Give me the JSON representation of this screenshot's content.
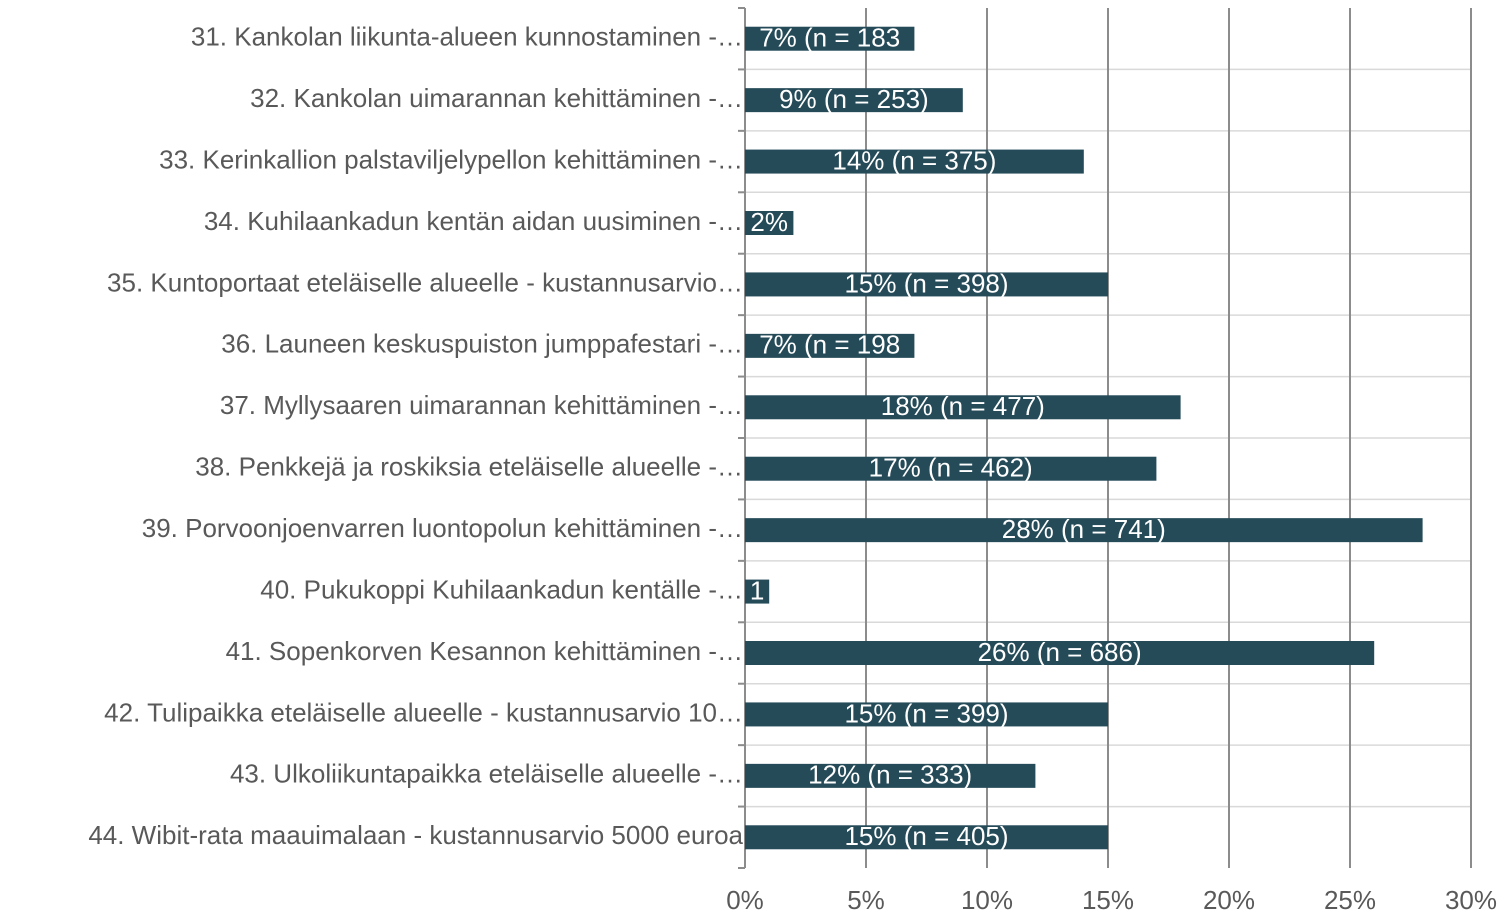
{
  "chart_data": {
    "type": "bar",
    "orientation": "horizontal",
    "categories": [
      "31. Kankolan liikunta-alueen kunnostaminen -…",
      "32. Kankolan uimarannan kehittäminen -…",
      "33. Kerinkallion palstaviljelypellon kehittäminen -…",
      "34. Kuhilaankadun kentän aidan uusiminen -…",
      "35. Kuntoportaat eteläiselle alueelle - kustannusarvio…",
      "36. Launeen keskuspuiston jumppafestari -…",
      "37. Myllysaaren uimarannan kehittäminen -…",
      "38. Penkkejä ja roskiksia eteläiselle alueelle -…",
      "39. Porvoonjoenvarren luontopolun kehittäminen -…",
      "40. Pukukoppi Kuhilaankadun kentälle -…",
      "41. Sopenkorven Kesannon kehittäminen -…",
      "42. Tulipaikka eteläiselle alueelle - kustannusarvio 10…",
      "43. Ulkoliikuntapaikka eteläiselle alueelle -…",
      "44. Wibit-rata maauimalaan - kustannusarvio 5000 euroa"
    ],
    "values": [
      7,
      9,
      14,
      2,
      15,
      7,
      18,
      17,
      28,
      1,
      26,
      15,
      12,
      15
    ],
    "value_labels": [
      "7% (n = 183",
      "9% (n = 253)",
      "14% (n = 375)",
      "2%",
      "15% (n = 398)",
      "7% (n = 198",
      "18% (n = 477)",
      "17% (n = 462)",
      "28% (n = 741)",
      "1",
      "26% (n = 686)",
      "15% (n = 399)",
      "12% (n = 333)",
      "15% (n = 405)"
    ],
    "color": "#254b59",
    "xlim": [
      0,
      30
    ],
    "xticks": [
      {
        "value": 0,
        "label": "0%"
      },
      {
        "value": 5,
        "label": "5%"
      },
      {
        "value": 10,
        "label": "10%"
      },
      {
        "value": 15,
        "label": "15%"
      },
      {
        "value": 20,
        "label": "20%"
      },
      {
        "value": 25,
        "label": "25%"
      },
      {
        "value": 30,
        "label": "30%"
      }
    ],
    "grid": true
  }
}
